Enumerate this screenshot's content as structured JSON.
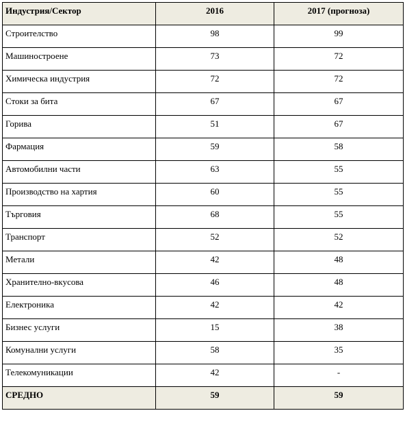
{
  "table": {
    "header": [
      "Индустрия/Сектор",
      "2016",
      "2017 (прогноза)"
    ],
    "rows": [
      [
        "Строителство",
        98,
        99
      ],
      [
        "Машиностроене",
        73,
        72
      ],
      [
        "Химическа индустрия",
        72,
        72
      ],
      [
        "Стоки за бита",
        67,
        67
      ],
      [
        "Горива",
        51,
        67
      ],
      [
        "Фармация",
        59,
        58
      ],
      [
        "Автомобилни части",
        63,
        55
      ],
      [
        "Производство на хартия",
        60,
        55
      ],
      [
        "Търговия",
        68,
        55
      ],
      [
        "Транспорт",
        52,
        52
      ],
      [
        "Метали",
        42,
        48
      ],
      [
        "Хранително-вкусова",
        46,
        48
      ],
      [
        "Електроника",
        42,
        42
      ],
      [
        "Бизнес услуги",
        15,
        38
      ],
      [
        "Комунални услуги",
        58,
        35
      ],
      [
        "Телекомуникации",
        42,
        "-"
      ]
    ],
    "footer": [
      "СРЕДНО",
      59,
      59
    ]
  }
}
